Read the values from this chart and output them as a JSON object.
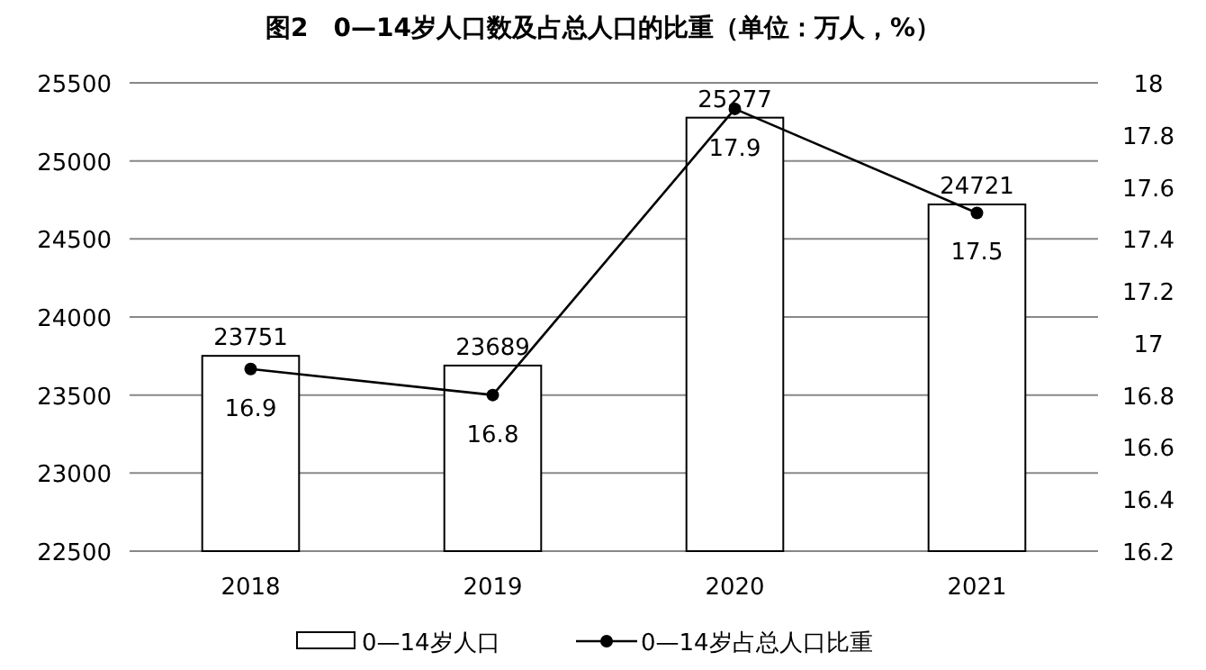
{
  "chart_data": {
    "type": "bar",
    "title": "图2　0—14岁人口数及占总人口的比重（单位：万人，%）",
    "categories": [
      "2018",
      "2019",
      "2020",
      "2021"
    ],
    "series": [
      {
        "name": "0—14岁人口",
        "color": "#ffffff",
        "values": [
          23751,
          23689,
          25277,
          24721
        ]
      },
      {
        "name": "0—14岁占总人口比重",
        "type": "line",
        "axis": "y2",
        "color": "#000000",
        "marker": "circle",
        "values": [
          16.9,
          16.8,
          17.9,
          17.5
        ]
      }
    ],
    "ylim": [
      22500,
      25500
    ],
    "yticks": [
      22500,
      23000,
      23500,
      24000,
      24500,
      25000,
      25500
    ],
    "y2lim": [
      16.2,
      18
    ],
    "y2ticks": [
      16.2,
      16.4,
      16.6,
      16.8,
      17,
      17.2,
      17.4,
      17.6,
      17.8,
      18
    ],
    "grid": "y",
    "legend": "bottom",
    "data_labels": true
  }
}
